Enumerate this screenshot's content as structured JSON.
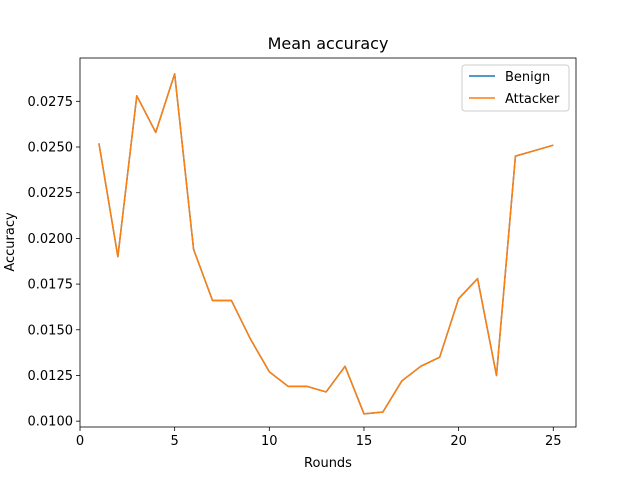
{
  "chart_data": {
    "type": "line",
    "title": "Mean accuracy",
    "xlabel": "Rounds",
    "ylabel": "Accuracy",
    "xlim": [
      0,
      26.2
    ],
    "ylim": [
      0.00968,
      0.02987
    ],
    "xticks": [
      0,
      5,
      10,
      15,
      20,
      25
    ],
    "xtick_labels": [
      "0",
      "5",
      "10",
      "15",
      "20",
      "25"
    ],
    "yticks": [
      0.01,
      0.0125,
      0.015,
      0.0175,
      0.02,
      0.0225,
      0.025,
      0.0275
    ],
    "ytick_labels": [
      "0.0100",
      "0.0125",
      "0.0150",
      "0.0175",
      "0.0200",
      "0.0225",
      "0.0250",
      "0.0275"
    ],
    "grid": false,
    "legend_position": "top-right",
    "x": [
      1,
      2,
      3,
      4,
      5,
      6,
      7,
      8,
      9,
      10,
      11,
      12,
      13,
      14,
      15,
      16,
      17,
      18,
      19,
      20,
      21,
      22,
      23,
      24,
      25
    ],
    "series": [
      {
        "name": "Benign",
        "color": "#1f77b4",
        "values": [
          0.0252,
          0.019,
          0.0278,
          0.0258,
          0.029,
          0.0194,
          0.0166,
          0.0166,
          0.0145,
          0.0127,
          0.0119,
          0.0119,
          0.0116,
          0.013,
          0.0104,
          0.0105,
          0.0122,
          0.013,
          0.0135,
          0.0167,
          0.0178,
          0.0125,
          0.0245,
          0.0248,
          0.0251
        ]
      },
      {
        "name": "Attacker",
        "color": "#ff7f0e",
        "values": [
          0.0252,
          0.019,
          0.0278,
          0.0258,
          0.029,
          0.0194,
          0.0166,
          0.0166,
          0.0145,
          0.0127,
          0.0119,
          0.0119,
          0.0116,
          0.013,
          0.0104,
          0.0105,
          0.0122,
          0.013,
          0.0135,
          0.0167,
          0.0178,
          0.0125,
          0.0245,
          0.0248,
          0.0251
        ]
      }
    ]
  }
}
